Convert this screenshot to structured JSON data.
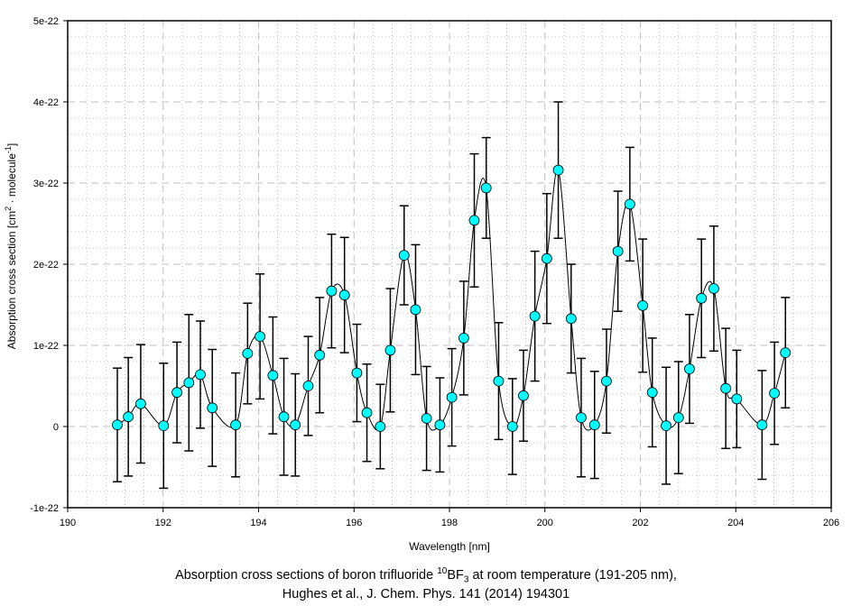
{
  "chart_data": {
    "type": "scatter",
    "title": "",
    "xlabel": "Wavelength [nm]",
    "ylabel": "Absorption cross section [cm2 · molecule-1]",
    "ylabel_parts": {
      "main": "Absorption cross section [cm",
      "sup1": "2",
      "mid": " · molecule",
      "sup2": "-1",
      "end": "]"
    },
    "xlim": [
      190,
      206
    ],
    "ylim": [
      -1e-22,
      5e-22
    ],
    "x_ticks": [
      190,
      192,
      194,
      196,
      198,
      200,
      202,
      204,
      206
    ],
    "x_tick_labels": [
      "190",
      "192",
      "194",
      "196",
      "198",
      "200",
      "202",
      "204",
      "206"
    ],
    "y_ticks": [
      -1e-22,
      0,
      1e-22,
      2e-22,
      3e-22,
      4e-22,
      5e-22
    ],
    "y_tick_labels": [
      "-1e-22",
      "0",
      "1e-22",
      "2e-22",
      "3e-22",
      "4e-22",
      "5e-22"
    ],
    "grid": true,
    "legend": "none",
    "marker_color": "#00ffff",
    "line_color": "#000000",
    "series": [
      {
        "name": "10BF3 cross section",
        "unit_scale": 1e-22,
        "x": [
          191.04,
          191.27,
          191.53,
          192.01,
          192.29,
          192.54,
          192.78,
          193.03,
          193.52,
          193.77,
          194.03,
          194.3,
          194.53,
          194.77,
          195.04,
          195.28,
          195.53,
          195.8,
          196.06,
          196.27,
          196.55,
          196.76,
          197.05,
          197.29,
          197.52,
          197.8,
          198.05,
          198.3,
          198.52,
          198.77,
          199.03,
          199.32,
          199.55,
          199.79,
          200.04,
          200.28,
          200.55,
          200.76,
          201.04,
          201.29,
          201.53,
          201.78,
          202.05,
          202.25,
          202.54,
          202.8,
          203.03,
          203.28,
          203.54,
          203.79,
          204.02,
          204.55,
          204.81,
          205.04
        ],
        "y": [
          0.02,
          0.12,
          0.28,
          0.01,
          0.42,
          0.54,
          0.64,
          0.23,
          0.02,
          0.9,
          1.11,
          0.63,
          0.12,
          0.02,
          0.5,
          0.88,
          1.67,
          1.62,
          0.66,
          0.17,
          0.0,
          0.94,
          2.11,
          1.44,
          0.1,
          0.02,
          0.36,
          1.09,
          2.54,
          2.94,
          0.56,
          0.0,
          0.38,
          1.36,
          2.07,
          3.16,
          1.33,
          0.11,
          0.02,
          0.56,
          2.16,
          2.74,
          1.49,
          0.42,
          0.01,
          0.11,
          0.71,
          1.58,
          1.7,
          0.47,
          0.34,
          0.02,
          0.41,
          0.91
        ],
        "error": [
          0.7,
          0.73,
          0.73,
          0.77,
          0.62,
          0.84,
          0.66,
          0.72,
          0.64,
          0.62,
          0.77,
          0.72,
          0.72,
          0.63,
          0.61,
          0.71,
          0.7,
          0.71,
          0.6,
          0.6,
          0.52,
          0.76,
          0.61,
          0.8,
          0.64,
          0.58,
          0.6,
          0.7,
          0.82,
          0.62,
          0.72,
          0.59,
          0.56,
          0.8,
          0.8,
          0.84,
          0.67,
          0.73,
          0.66,
          0.64,
          0.74,
          0.7,
          0.82,
          0.67,
          0.72,
          0.69,
          0.67,
          0.73,
          0.77,
          0.74,
          0.6,
          0.67,
          0.63,
          0.68
        ]
      }
    ]
  },
  "captions": {
    "line1_pre": "Absorption cross sections of boron trifluoride ",
    "isotope": "10",
    "formula_main": "BF",
    "formula_sub": "3",
    "line1_post": " at room temperature (191-205 nm),",
    "line2": "Hughes et al., J. Chem. Phys. 141 (2014) 194301"
  }
}
